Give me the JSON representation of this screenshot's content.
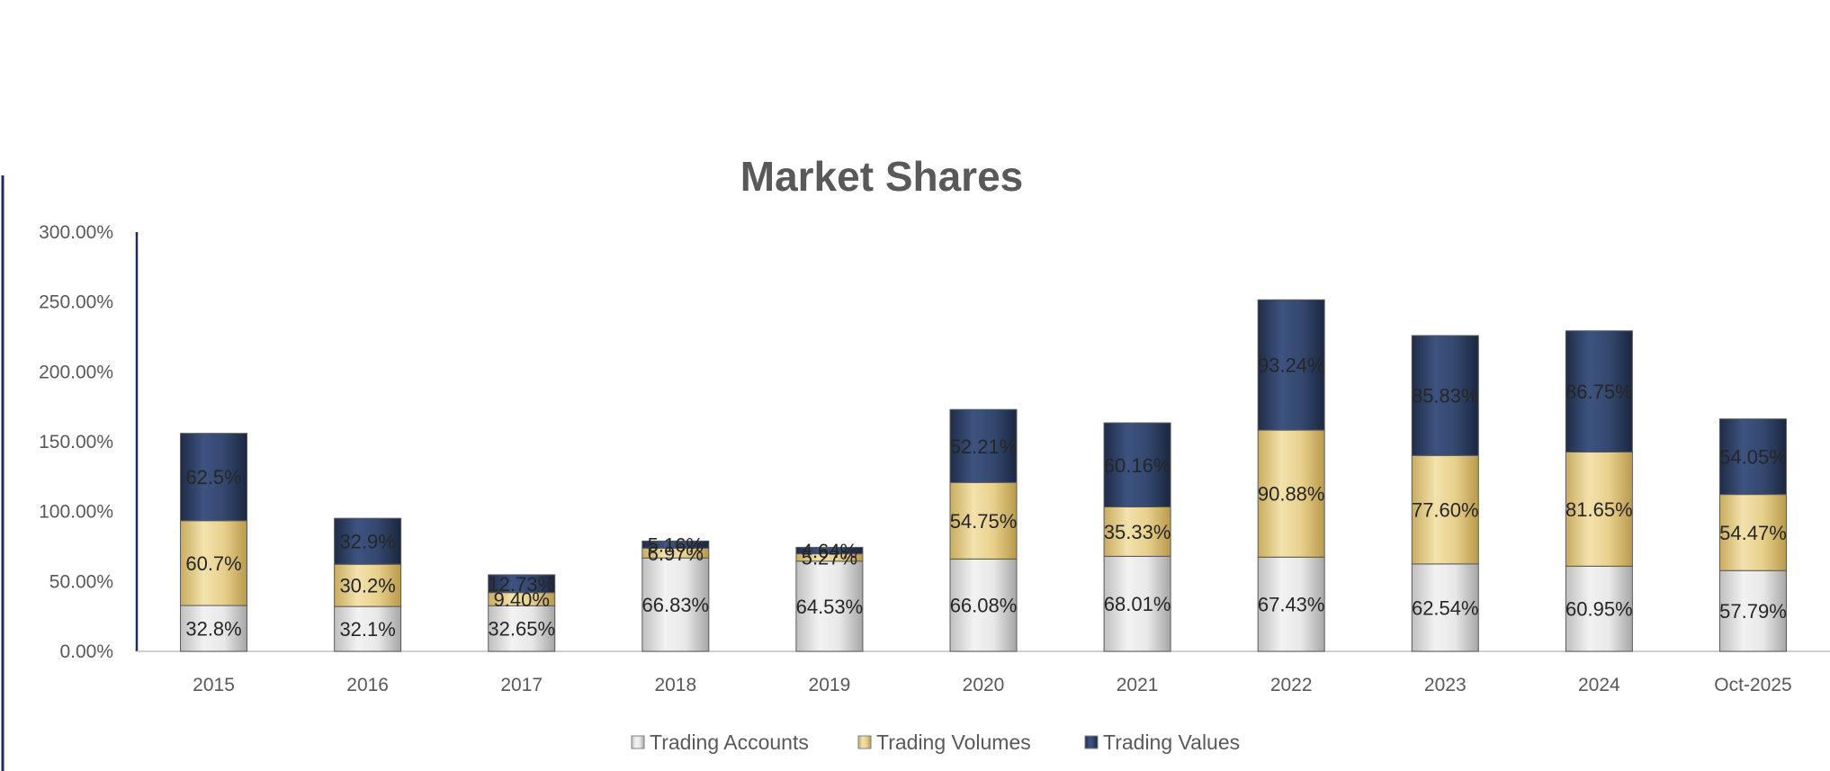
{
  "chart_data": {
    "type": "bar",
    "stacked": true,
    "title": "Market Shares",
    "xlabel": "",
    "ylabel": "",
    "ylim": [
      0,
      300
    ],
    "y_ticks": [
      "0.00%",
      "50.00%",
      "100.00%",
      "150.00%",
      "200.00%",
      "250.00%",
      "300.00%"
    ],
    "categories": [
      "2015",
      "2016",
      "2017",
      "2018",
      "2019",
      "2020",
      "2021",
      "2022",
      "2023",
      "2024",
      "Oct-2025"
    ],
    "series": [
      {
        "name": "Trading Accounts",
        "color": "#d9d9d9",
        "values": [
          32.8,
          32.1,
          32.65,
          66.83,
          64.53,
          66.08,
          68.01,
          67.43,
          62.54,
          60.95,
          57.79
        ],
        "labels": [
          "32.8%",
          "32.1%",
          "32.65%",
          "66.83%",
          "64.53%",
          "66.08%",
          "68.01%",
          "67.43%",
          "62.54%",
          "60.95%",
          "57.79%"
        ]
      },
      {
        "name": "Trading Volumes",
        "color": "#e6cf8f",
        "values": [
          60.7,
          30.2,
          9.4,
          6.97,
          5.27,
          54.75,
          35.33,
          90.88,
          77.6,
          81.65,
          54.47
        ],
        "labels": [
          "60.7%",
          "30.2%",
          "9.40%",
          "6.97%",
          "5.27%",
          "54.75%",
          "35.33%",
          "90.88%",
          "77.60%",
          "81.65%",
          "54.47%"
        ]
      },
      {
        "name": "Trading Values",
        "color": "#2f4265",
        "values": [
          62.5,
          32.9,
          12.73,
          5.16,
          4.64,
          52.21,
          60.16,
          93.24,
          85.83,
          86.75,
          54.05
        ],
        "labels": [
          "62.5%",
          "32.9%",
          "12.73%",
          "5.16%",
          "4.64%",
          "52.21%",
          "60.16%",
          "93.24%",
          "85.83%",
          "86.75%",
          "54.05%"
        ]
      }
    ],
    "grid": false,
    "legend_position": "bottom"
  }
}
